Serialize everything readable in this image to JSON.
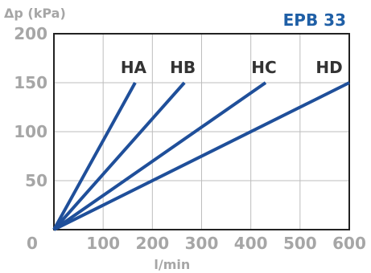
{
  "chart_data": {
    "type": "line",
    "title": "EPB 33",
    "ylabel": "Δp (kPa)",
    "xlabel": "l/min",
    "xlim": [
      0,
      600
    ],
    "ylim": [
      0,
      200
    ],
    "x_ticks": [
      "0",
      "100",
      "200",
      "300",
      "400",
      "500",
      "600"
    ],
    "y_ticks": [
      "50",
      "100",
      "150",
      "200"
    ],
    "grid": true,
    "series": [
      {
        "name": "HA",
        "x": [
          0,
          165
        ],
        "y": [
          0,
          150
        ]
      },
      {
        "name": "HB",
        "x": [
          0,
          265
        ],
        "y": [
          0,
          150
        ]
      },
      {
        "name": "HC",
        "x": [
          0,
          430
        ],
        "y": [
          0,
          150
        ]
      },
      {
        "name": "HD",
        "x": [
          0,
          600
        ],
        "y": [
          0,
          150
        ]
      }
    ],
    "colors": {
      "line": "#1f4f9a",
      "title": "#1f5fa6",
      "tick": "#a6a6a6",
      "series_label": "#333333",
      "grid": "#bdbdbd",
      "frame": "#222222"
    }
  }
}
